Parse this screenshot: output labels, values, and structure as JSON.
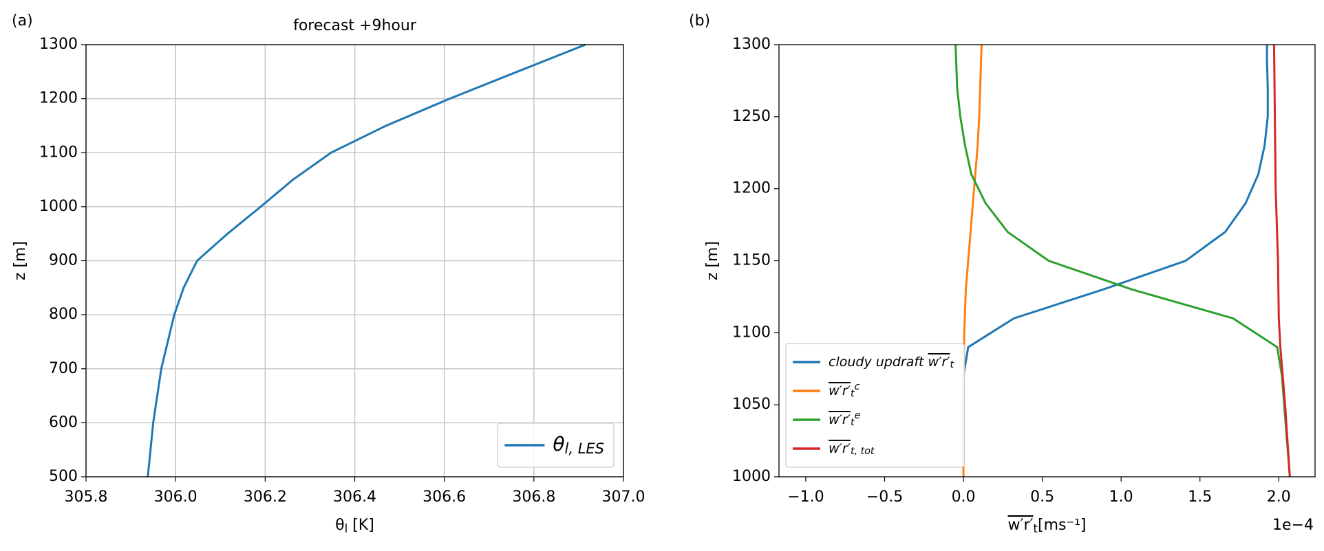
{
  "chart_data": [
    {
      "type": "line",
      "panel_label": "(a)",
      "title": "forecast +9hour",
      "x_label": {
        "text": "θ",
        "sub": "l",
        "unit": " [K]"
      },
      "y_label": "z [m]",
      "xlim": [
        305.8,
        307.0
      ],
      "ylim": [
        500,
        1300
      ],
      "xticks": [
        305.8,
        {
          "value": 306.0,
          "label": "306.0"
        },
        306.2,
        306.4,
        306.6,
        306.8,
        {
          "value": 307.0,
          "label": "307.0"
        }
      ],
      "yticks": [
        500,
        600,
        700,
        800,
        900,
        1000,
        1100,
        1200,
        1300
      ],
      "grid": true,
      "legend": "lower right",
      "series": [
        {
          "name": {
            "text": "θ",
            "sub": "l, LES"
          },
          "color": "#1f77b4",
          "x": [
            305.938,
            305.95,
            305.968,
            305.997,
            306.018,
            306.048,
            306.116,
            306.19,
            306.262,
            306.347,
            306.47,
            306.612,
            306.763,
            306.915
          ],
          "y": [
            500,
            600,
            700,
            800,
            850,
            900,
            950,
            1000,
            1050,
            1100,
            1150,
            1200,
            1250,
            1300
          ]
        }
      ]
    },
    {
      "type": "line",
      "panel_label": "(b)",
      "x_label": {
        "over": "w′r′",
        "sub": "t",
        "unit": "[ms⁻¹]"
      },
      "y_label": "z [m]",
      "x_offset_label": "1e−4",
      "xlim": [
        -1.17,
        2.23
      ],
      "ylim": [
        1000,
        1300
      ],
      "xticks": [
        {
          "value": -1.0,
          "label": "−1.0"
        },
        {
          "value": -0.5,
          "label": "−0.5"
        },
        {
          "value": 0.0,
          "label": "0.0"
        },
        0.5,
        {
          "value": 1.0,
          "label": "1.0"
        },
        1.5,
        {
          "value": 2.0,
          "label": "2.0"
        }
      ],
      "yticks": [
        1000,
        1050,
        1100,
        1150,
        1200,
        1250,
        1300
      ],
      "grid": false,
      "legend": "lower left",
      "series": [
        {
          "name": {
            "prefix": "cloudy updraft ",
            "over": "w′r′",
            "sub": "t"
          },
          "color": "#1f77b4",
          "x": [
            0.0,
            0.03,
            0.32,
            0.885,
            1.41,
            1.66,
            1.79,
            1.87,
            1.91,
            1.93,
            1.93,
            1.925,
            1.925
          ],
          "y": [
            1070,
            1090,
            1110,
            1130,
            1150,
            1170,
            1190,
            1210,
            1230,
            1250,
            1270,
            1290,
            1300
          ]
        },
        {
          "name": {
            "over": "w′r′",
            "sub": "t",
            "sup": "c"
          },
          "color": "#ff7f0e",
          "x": [
            0.0,
            0.0,
            0.005,
            0.015,
            0.03,
            0.045,
            0.06,
            0.075,
            0.09,
            0.1,
            0.115
          ],
          "y": [
            1000,
            1050,
            1100,
            1130,
            1150,
            1170,
            1190,
            1210,
            1230,
            1250,
            1300
          ]
        },
        {
          "name": {
            "over": "w′r′",
            "sub": "t",
            "sup": "e"
          },
          "color": "#2ca02c",
          "x": [
            2.07,
            2.02,
            1.99,
            1.71,
            1.07,
            0.54,
            0.28,
            0.14,
            0.05,
            0.01,
            -0.02,
            -0.04,
            -0.05
          ],
          "y": [
            1000,
            1070,
            1090,
            1110,
            1130,
            1150,
            1170,
            1190,
            1210,
            1230,
            1250,
            1270,
            1300
          ]
        },
        {
          "name": {
            "over": "w′r′",
            "sub": "t, tot"
          },
          "color": "#d62728",
          "x": [
            2.07,
            2.04,
            2.01,
            2.0,
            1.995,
            1.98,
            1.975,
            1.97
          ],
          "y": [
            1000,
            1050,
            1090,
            1110,
            1150,
            1200,
            1250,
            1300
          ]
        }
      ]
    }
  ]
}
